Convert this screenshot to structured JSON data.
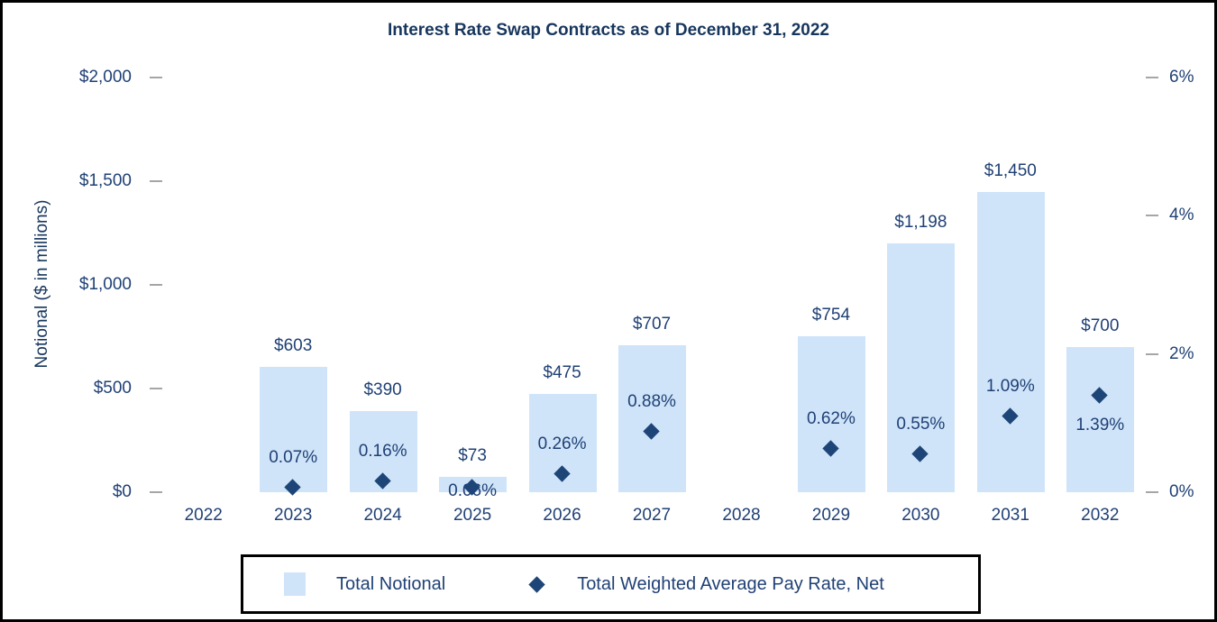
{
  "chart_data": {
    "type": "combo",
    "title": "Interest Rate Swap Contracts as of December 31, 2022",
    "categories": [
      "2022",
      "2023",
      "2024",
      "2025",
      "2026",
      "2027",
      "2028",
      "2029",
      "2030",
      "2031",
      "2032"
    ],
    "series": [
      {
        "name": "Total Notional",
        "type": "bar",
        "axis": "left",
        "values": [
          null,
          603,
          390,
          73,
          475,
          707,
          null,
          754,
          1198,
          1450,
          700
        ],
        "data_labels": [
          null,
          "$603",
          "$390",
          "$73",
          "$475",
          "$707",
          null,
          "$754",
          "$1,198",
          "$1,450",
          "$700"
        ]
      },
      {
        "name": "Total Weighted Average Pay Rate, Net",
        "type": "scatter",
        "marker": "diamond",
        "axis": "right",
        "values": [
          null,
          0.07,
          0.16,
          0.06,
          0.26,
          0.88,
          null,
          0.62,
          0.55,
          1.09,
          1.39
        ],
        "data_labels": [
          null,
          "0.07%",
          "0.16%",
          "0.06%",
          "0.26%",
          "0.88%",
          null,
          "0.62%",
          "0.55%",
          "1.09%",
          "1.39%"
        ],
        "label_positions": [
          null,
          "above",
          "above",
          "overlap",
          "above",
          "above",
          null,
          "above",
          "above",
          "above",
          "below"
        ]
      }
    ],
    "left_axis": {
      "title": "Notional ($ in millions)",
      "range": [
        0,
        2000
      ],
      "ticks": [
        {
          "value": 0,
          "label": "$0"
        },
        {
          "value": 500,
          "label": "$500"
        },
        {
          "value": 1000,
          "label": "$1,000"
        },
        {
          "value": 1500,
          "label": "$1,500"
        },
        {
          "value": 2000,
          "label": "$2,000"
        }
      ]
    },
    "right_axis": {
      "range": [
        0,
        6
      ],
      "ticks": [
        {
          "value": 0,
          "label": "0%"
        },
        {
          "value": 2,
          "label": "2%"
        },
        {
          "value": 4,
          "label": "4%"
        },
        {
          "value": 6,
          "label": "6%"
        }
      ]
    },
    "grid": false,
    "legend": {
      "position": "bottom",
      "items": [
        {
          "swatch": "bar",
          "label": "Total Notional"
        },
        {
          "swatch": "diamond",
          "label": "Total Weighted Average Pay Rate, Net"
        }
      ]
    }
  },
  "colors": {
    "bar_fill": "#cfe4f9",
    "marker": "#1e4577",
    "label_text": "#1f4075",
    "title_text": "#17365d",
    "tick_dash": "#a6a6a6",
    "border": "#000000"
  }
}
